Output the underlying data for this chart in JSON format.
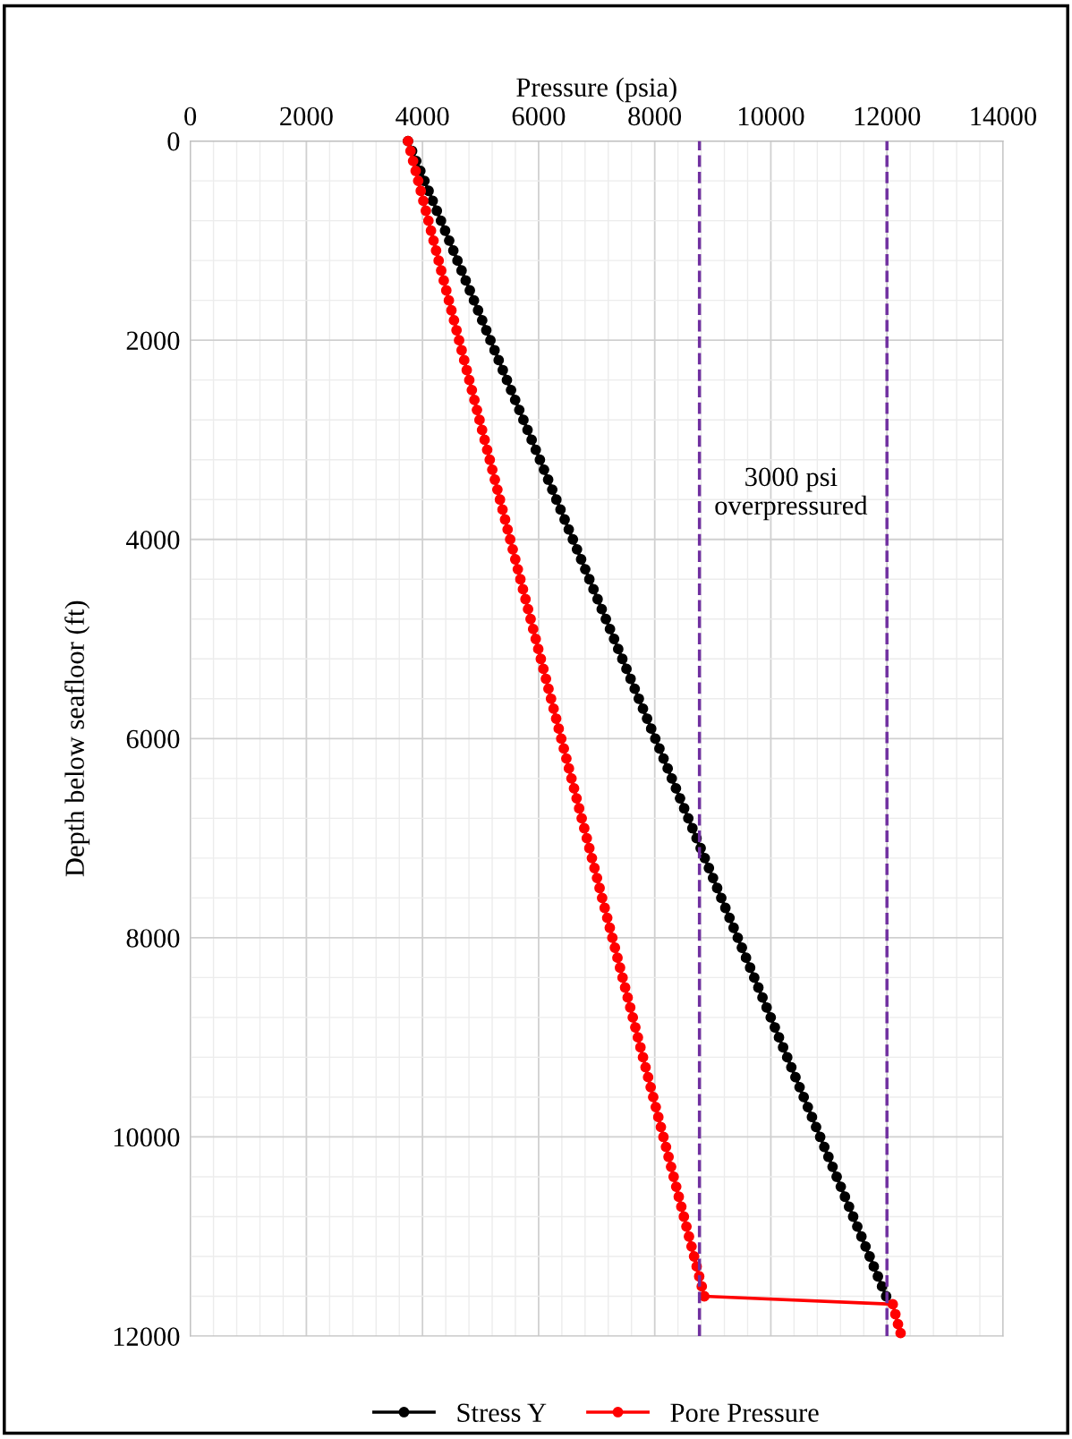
{
  "chart_data": {
    "type": "line",
    "xlabel": "Pressure (psia)",
    "ylabel": "Depth below seafloor (ft)",
    "xlim": [
      0,
      14000
    ],
    "xticks": [
      0,
      2000,
      4000,
      6000,
      8000,
      10000,
      12000,
      14000
    ],
    "ylim": [
      12000,
      0
    ],
    "yticks": [
      0,
      2000,
      4000,
      6000,
      8000,
      10000,
      12000
    ],
    "grid": true,
    "legend": "bottom",
    "marker": "circle",
    "line_style": "solid",
    "series": [
      {
        "name": "Stress Y",
        "color": "#000000",
        "x": [
          3750,
          3821,
          3892,
          3963,
          4034,
          4105,
          4176,
          4247,
          4318,
          4389,
          4460,
          4531,
          4602,
          4673,
          4744,
          4815,
          4886,
          4957,
          5028,
          5099,
          5170,
          5241,
          5312,
          5383,
          5454,
          5525,
          5596,
          5667,
          5738,
          5809,
          5880,
          5951,
          6022,
          6093,
          6164,
          6235,
          6306,
          6377,
          6448,
          6519,
          6590,
          6661,
          6732,
          6803,
          6874,
          6945,
          7016,
          7087,
          7158,
          7229,
          7300,
          7371,
          7442,
          7513,
          7584,
          7655,
          7726,
          7797,
          7868,
          7939,
          8010,
          8081,
          8152,
          8223,
          8294,
          8365,
          8436,
          8507,
          8578,
          8649,
          8720,
          8791,
          8862,
          8933,
          9004,
          9075,
          9146,
          9217,
          9288,
          9359,
          9430,
          9501,
          9572,
          9643,
          9714,
          9785,
          9856,
          9927,
          9998,
          10069,
          10140,
          10211,
          10282,
          10353,
          10424,
          10495,
          10566,
          10637,
          10708,
          10779,
          10850,
          10921,
          10992,
          11063,
          11134,
          11205,
          11276,
          11347,
          11418,
          11489,
          11560,
          11631,
          11702,
          11773,
          11844,
          11915,
          11986
        ],
        "values": [
          0,
          100,
          200,
          300,
          400,
          500,
          600,
          700,
          800,
          900,
          1000,
          1100,
          1200,
          1300,
          1400,
          1500,
          1600,
          1700,
          1800,
          1900,
          2000,
          2100,
          2200,
          2300,
          2400,
          2500,
          2600,
          2700,
          2800,
          2900,
          3000,
          3100,
          3200,
          3300,
          3400,
          3500,
          3600,
          3700,
          3800,
          3900,
          4000,
          4100,
          4200,
          4300,
          4400,
          4500,
          4600,
          4700,
          4800,
          4900,
          5000,
          5100,
          5200,
          5300,
          5400,
          5500,
          5600,
          5700,
          5800,
          5900,
          6000,
          6100,
          6200,
          6300,
          6400,
          6500,
          6600,
          6700,
          6800,
          6900,
          7000,
          7100,
          7200,
          7300,
          7400,
          7500,
          7600,
          7700,
          7800,
          7900,
          8000,
          8100,
          8200,
          8300,
          8400,
          8500,
          8600,
          8700,
          8800,
          8900,
          9000,
          9100,
          9200,
          9300,
          9400,
          9500,
          9600,
          9700,
          9800,
          9900,
          10000,
          10100,
          10200,
          10300,
          10400,
          10500,
          10600,
          10700,
          10800,
          10900,
          11000,
          11100,
          11200,
          11300,
          11400,
          11500,
          11600
        ]
      },
      {
        "name": "Pore Pressure",
        "color": "#ff0000",
        "x": [
          3750,
          3794,
          3838,
          3882,
          3926,
          3970,
          4014,
          4058,
          4102,
          4146,
          4190,
          4234,
          4278,
          4322,
          4366,
          4410,
          4454,
          4498,
          4542,
          4586,
          4630,
          4674,
          4718,
          4762,
          4806,
          4850,
          4894,
          4938,
          4982,
          5026,
          5070,
          5114,
          5158,
          5202,
          5246,
          5290,
          5334,
          5378,
          5422,
          5466,
          5510,
          5554,
          5598,
          5642,
          5686,
          5730,
          5774,
          5818,
          5862,
          5906,
          5950,
          5994,
          6038,
          6082,
          6126,
          6170,
          6214,
          6258,
          6302,
          6346,
          6390,
          6434,
          6478,
          6522,
          6566,
          6610,
          6654,
          6698,
          6742,
          6786,
          6830,
          6874,
          6918,
          6962,
          7006,
          7050,
          7094,
          7138,
          7182,
          7226,
          7270,
          7314,
          7358,
          7402,
          7446,
          7490,
          7534,
          7578,
          7622,
          7666,
          7710,
          7754,
          7798,
          7842,
          7886,
          7930,
          7974,
          8018,
          8062,
          8106,
          8150,
          8194,
          8238,
          8282,
          8326,
          8370,
          8414,
          8458,
          8502,
          8546,
          8590,
          8634,
          8678,
          8722,
          8766,
          8810,
          8854,
          12100,
          12145,
          12190,
          12235
        ],
        "values": [
          0,
          100,
          200,
          300,
          400,
          500,
          600,
          700,
          800,
          900,
          1000,
          1100,
          1200,
          1300,
          1400,
          1500,
          1600,
          1700,
          1800,
          1900,
          2000,
          2100,
          2200,
          2300,
          2400,
          2500,
          2600,
          2700,
          2800,
          2900,
          3000,
          3100,
          3200,
          3300,
          3400,
          3500,
          3600,
          3700,
          3800,
          3900,
          4000,
          4100,
          4200,
          4300,
          4400,
          4500,
          4600,
          4700,
          4800,
          4900,
          5000,
          5100,
          5200,
          5300,
          5400,
          5500,
          5600,
          5700,
          5800,
          5900,
          6000,
          6100,
          6200,
          6300,
          6400,
          6500,
          6600,
          6700,
          6800,
          6900,
          7000,
          7100,
          7200,
          7300,
          7400,
          7500,
          7600,
          7700,
          7800,
          7900,
          8000,
          8100,
          8200,
          8300,
          8400,
          8500,
          8600,
          8700,
          8800,
          8900,
          9000,
          9100,
          9200,
          9300,
          9400,
          9500,
          9600,
          9700,
          9800,
          9900,
          10000,
          10100,
          10200,
          10300,
          10400,
          10500,
          10600,
          10700,
          10800,
          10900,
          11000,
          11100,
          11200,
          11300,
          11400,
          11500,
          11600,
          11680,
          11780,
          11880,
          11970
        ]
      }
    ],
    "ref_lines": [
      {
        "axis": "x",
        "value": 8770,
        "color": "#7030a0",
        "line_style": "dashed"
      },
      {
        "axis": "x",
        "value": 12000,
        "color": "#7030a0",
        "line_style": "dashed"
      }
    ],
    "annotations": [
      "3000 psi\noverpressured"
    ]
  }
}
